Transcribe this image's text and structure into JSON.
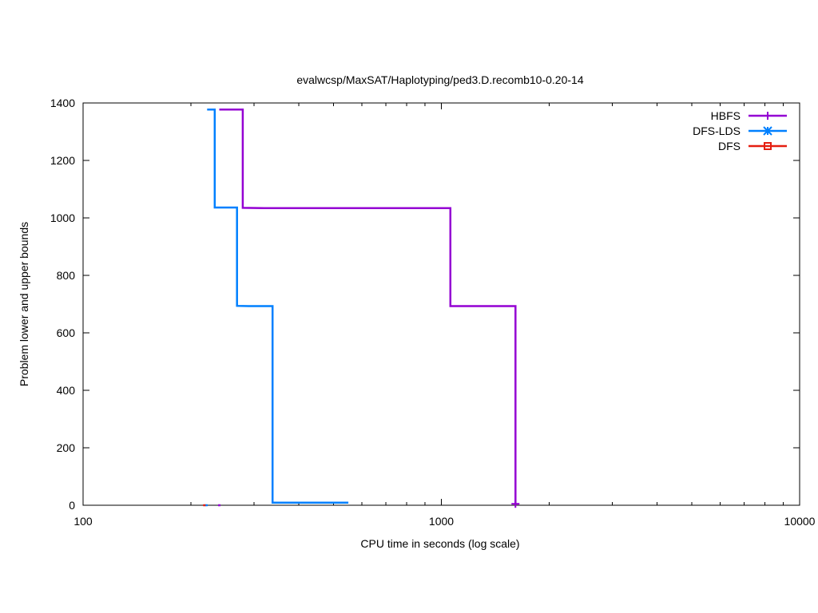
{
  "chart_data": {
    "type": "line",
    "title": "evalwcsp/MaxSAT/Haplotyping/ped3.D.recomb10-0.20-14",
    "xlabel": "CPU time in seconds (log scale)",
    "ylabel": "Problem lower and upper bounds",
    "x_scale": "log",
    "xlim": [
      100,
      10000
    ],
    "ylim": [
      0,
      1400
    ],
    "x_ticks": [
      100,
      1000,
      10000
    ],
    "x_tick_labels": [
      "100",
      "1000",
      "10000"
    ],
    "y_ticks": [
      0,
      200,
      400,
      600,
      800,
      1000,
      1200,
      1400
    ],
    "y_tick_labels": [
      "0",
      "200",
      "400",
      "600",
      "800",
      "1000",
      "1200",
      "1400"
    ],
    "grid": false,
    "legend_position": "top-right",
    "series": [
      {
        "name": "HBFS",
        "color": "#9400d3",
        "marker": "plus",
        "points": [
          [
            240,
            1377
          ],
          [
            279,
            1377
          ],
          [
            279,
            1035
          ],
          [
            320,
            1034
          ],
          [
            1060,
            1034
          ],
          [
            1060,
            693
          ],
          [
            1610,
            693
          ],
          [
            1610,
            5
          ]
        ],
        "lower_bound": [
          [
            240,
            0
          ]
        ],
        "end_marker": [
          1610,
          5
        ]
      },
      {
        "name": "DFS-LDS",
        "color": "#0080ff",
        "marker": "star",
        "points": [
          [
            222,
            1377
          ],
          [
            233,
            1377
          ],
          [
            233,
            1036
          ],
          [
            269,
            1036
          ],
          [
            269,
            694
          ],
          [
            290,
            693
          ],
          [
            338,
            693
          ],
          [
            338,
            9
          ],
          [
            550,
            9
          ]
        ],
        "lower_bound": [
          [
            221,
            0
          ]
        ]
      },
      {
        "name": "DFS",
        "color": "#e51e10",
        "marker": "square",
        "points": [],
        "lower_bound": [
          [
            218,
            0
          ]
        ]
      }
    ]
  }
}
